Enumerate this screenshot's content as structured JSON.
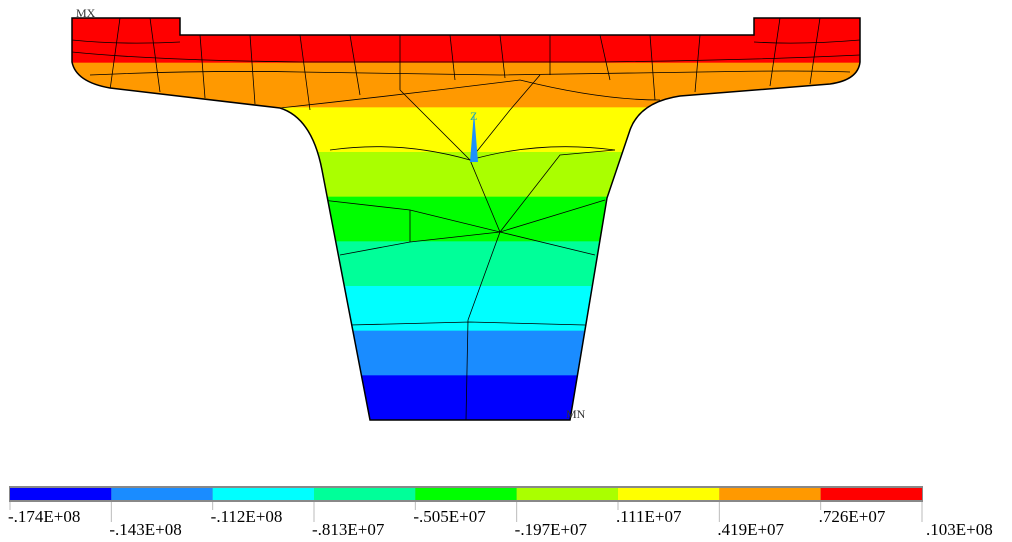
{
  "labels": {
    "max": "MX",
    "min": "MN",
    "axis": "Z"
  },
  "legend": {
    "colors": [
      "#0000ff",
      "#1a8cff",
      "#00ffff",
      "#00ff99",
      "#00ff00",
      "#aaff00",
      "#ffff00",
      "#ff9900",
      "#ff0000"
    ],
    "ticks": [
      "-.174E+08",
      "-.143E+08",
      "-.112E+08",
      "-.813E+07",
      "-.505E+07",
      "-.197E+07",
      ".111E+07",
      ".419E+07",
      ".726E+07",
      ".103E+08"
    ]
  }
}
